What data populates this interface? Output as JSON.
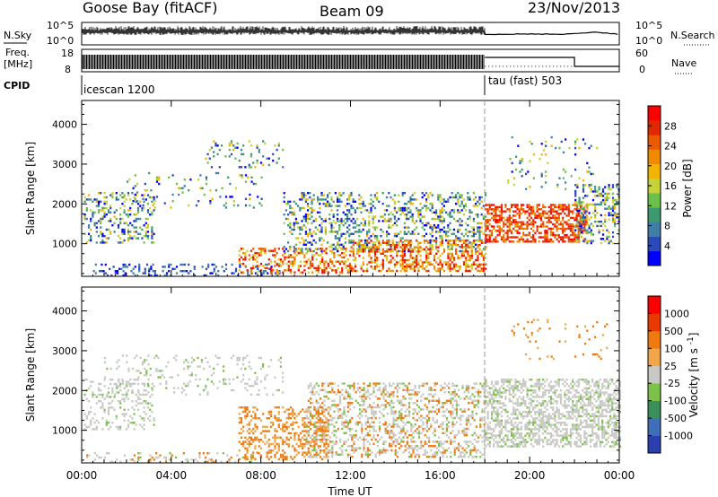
{
  "header": {
    "station": "Goose Bay (fitACF)",
    "beam": "Beam 09",
    "date": "23/Nov/2013"
  },
  "chart_data": {
    "type": "heatmap",
    "time_axis": {
      "label": "Time UT",
      "ticks": [
        "00:00",
        "04:00",
        "08:00",
        "12:00",
        "16:00",
        "20:00",
        "00:00"
      ],
      "range_hours": [
        0,
        24
      ]
    },
    "strips": {
      "nsky": {
        "label": "N.Sky",
        "right_label": "N.Search",
        "left_ticks": [
          "10^5",
          "10^0"
        ],
        "right_ticks": [
          "10^5",
          "10^0"
        ]
      },
      "freq": {
        "label": "Freq.",
        "unit": "[MHz]",
        "right_label": "Nave",
        "left_ticks": [
          "18",
          "8"
        ],
        "right_ticks": [
          "60",
          "0"
        ]
      },
      "cpid": {
        "label": "CPID",
        "modes": [
          {
            "name": "icescan 1200",
            "start_h": 0,
            "end_h": 18.0
          },
          {
            "name": "tau (fast) 503",
            "start_h": 18.0,
            "end_h": 24
          }
        ]
      }
    },
    "panels": [
      {
        "name": "power",
        "ylabel": "Slant Range [km]",
        "yticks": [
          "4000",
          "3000",
          "2000",
          "1000"
        ],
        "yrange_km": [
          180,
          4600
        ],
        "colorbar": {
          "label": "Power [dB]",
          "ticks": [
            "28",
            "24",
            "20",
            "16",
            "12",
            "8",
            "4"
          ],
          "range": [
            0,
            32
          ],
          "colors": [
            "#0000ff",
            "#2a4ab8",
            "#3f7fa6",
            "#3c9a6e",
            "#6bc04a",
            "#c6d23a",
            "#f3b300",
            "#f08a00",
            "#ec5a00",
            "#e12800",
            "#ff0000"
          ]
        }
      },
      {
        "name": "velocity",
        "ylabel": "Slant Range [km]",
        "yticks": [
          "4000",
          "3000",
          "2000",
          "1000"
        ],
        "yrange_km": [
          180,
          4600
        ],
        "colorbar": {
          "label": "Velocity [m s^-1]",
          "ticks": [
            "1000",
            "500",
            "100",
            "25",
            "-25",
            "-100",
            "-500",
            "-1000"
          ],
          "colors": [
            "#2a3fb0",
            "#3e6fb8",
            "#3a8f5a",
            "#7cc14a",
            "#c8c8c4",
            "#f1a64a",
            "#ee7a10",
            "#e83a00",
            "#ff0000"
          ]
        }
      }
    ]
  }
}
